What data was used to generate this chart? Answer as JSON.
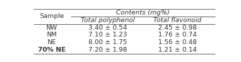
{
  "col_group_header": "Contents (mg%)",
  "sub_headers": [
    "Total polyphenol",
    "Total flavonoid"
  ],
  "sample_header": "Sample",
  "rows": [
    [
      "NW",
      "3.40 ± 0.54",
      "2.45 ± 0.98"
    ],
    [
      "NM",
      "7.10 ± 1.23",
      "1.76 ± 0.74"
    ],
    [
      "NE",
      "8.00 ± 1.75",
      "1.56 ± 0.48"
    ],
    [
      "70% NE",
      "7.20 ± 1.98",
      "1.21 ± 0.14"
    ]
  ],
  "background_color": "#ffffff",
  "line_color": "#555555",
  "text_color": "#333333",
  "font_size": 6.8
}
